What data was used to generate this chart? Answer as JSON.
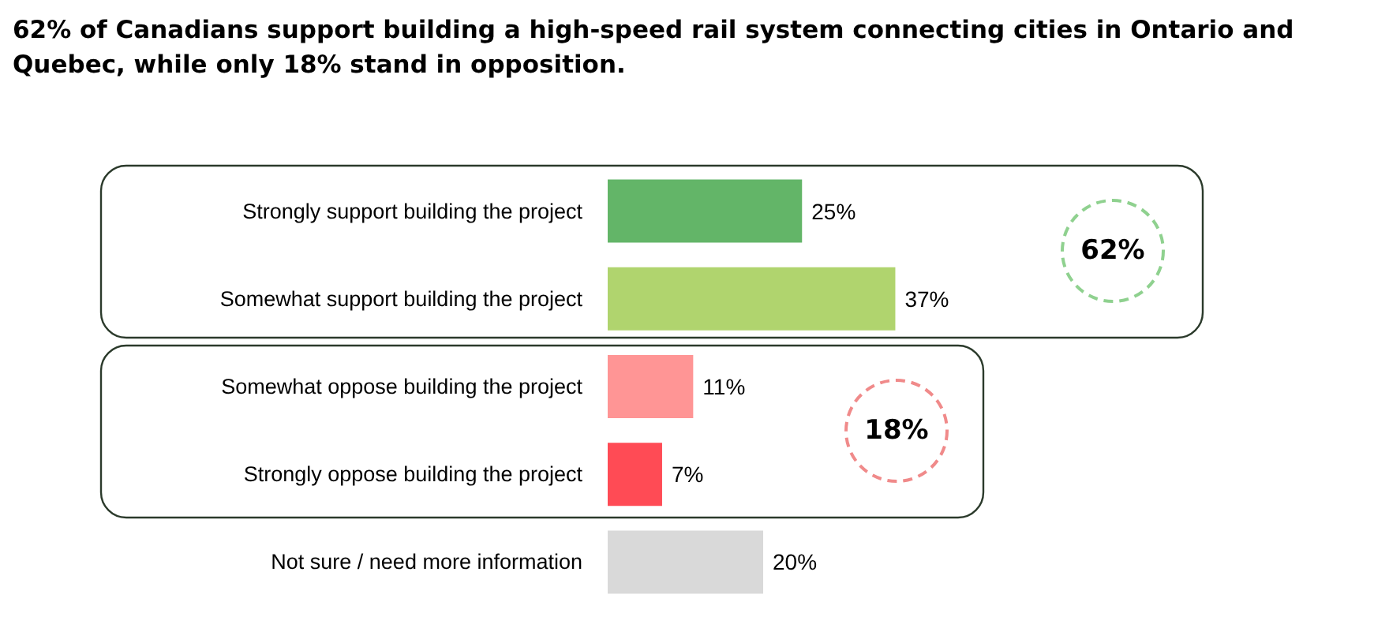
{
  "chart_data": {
    "type": "bar",
    "orientation": "horizontal",
    "title": "62% of Canadians support building a high-speed rail system connecting cities in Ontario and Quebec, while only 18% stand in opposition.",
    "categories": [
      "Strongly support building the project",
      "Somewhat support building the project",
      "Somewhat oppose building the project",
      "Strongly oppose building the project",
      "Not sure / need more information"
    ],
    "values": [
      25,
      37,
      11,
      7,
      20
    ],
    "colors": [
      "#63b568",
      "#b0d46e",
      "#ff9595",
      "#ff4b55",
      "#d9d9d9"
    ],
    "value_labels": [
      "25%",
      "37%",
      "11%",
      "7%",
      "20%"
    ],
    "annotations": [
      "62%",
      "18%"
    ]
  }
}
